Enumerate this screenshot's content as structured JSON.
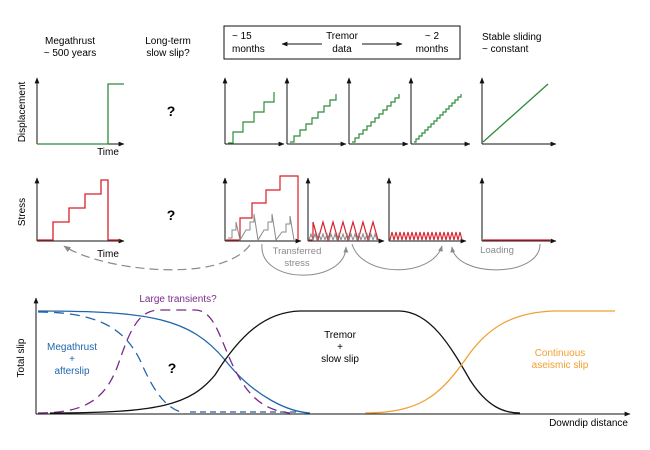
{
  "headers": {
    "megathrust": [
      "Megathrust",
      "~ 500 years"
    ],
    "long_term": [
      "Long-term",
      "slow slip?"
    ],
    "tremor_box": {
      "left": [
        "~ 15",
        "months"
      ],
      "center": [
        "Tremor",
        "data"
      ],
      "right": [
        "~ 2",
        "months"
      ]
    },
    "stable": [
      "Stable sliding",
      "~ constant"
    ]
  },
  "rows": {
    "displacement_label": "Displacement",
    "stress_label": "Stress",
    "time_label": "Time",
    "question_mark": "?"
  },
  "annotations": {
    "transferred": [
      "Transferred",
      "stress"
    ],
    "loading": "Loading"
  },
  "bottom": {
    "ylabel": "Total slip",
    "xlabel": "Downdip distance",
    "large_transients": "Large transients?",
    "megathrust": [
      "Megathrust",
      "+",
      "afterslip"
    ],
    "question_mark": "?",
    "tremor": [
      "Tremor",
      "+",
      "slow slip"
    ],
    "continuous": [
      "Continuous",
      "aseismic slip"
    ]
  },
  "colors": {
    "green": "#2e8b3a",
    "red": "#d81f2a",
    "gray": "#8a8a8a",
    "blue": "#2166ac",
    "purple": "#7b2a8c",
    "orange": "#f0a030",
    "black": "#111111"
  }
}
